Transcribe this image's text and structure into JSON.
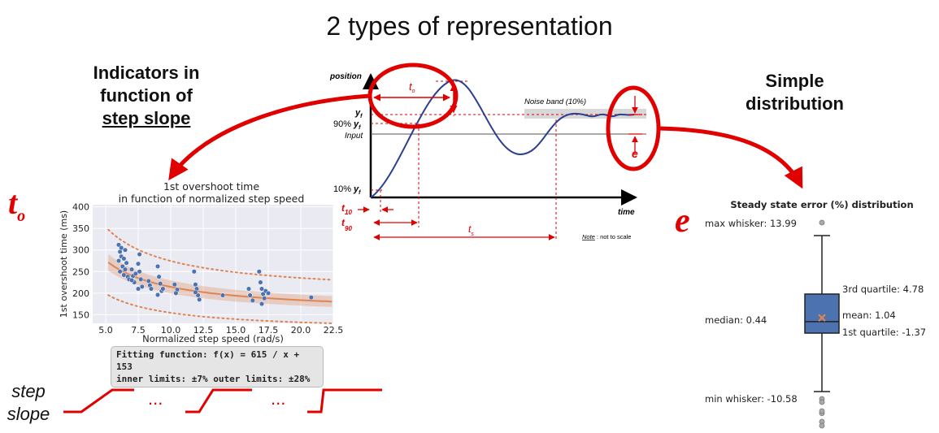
{
  "title": "2 types of representation",
  "left_heading": {
    "line1": "Indicators in",
    "line2": "function of",
    "line3": "step slope"
  },
  "right_heading": {
    "line1": "Simple",
    "line2": "distribution"
  },
  "to_symbol": {
    "main": "t",
    "sub": "o"
  },
  "e_symbol": "e",
  "step_label": {
    "line1": "step",
    "line2": "slope"
  },
  "ellipsis": "...",
  "colors": {
    "accent_red": "#e00000",
    "curve_blue": "#2a3f8f",
    "point_blue": "#4c72b0",
    "fit_orange": "#dd8452",
    "box_blue": "#4c72b0"
  },
  "response_diagram": {
    "position_label": "position",
    "time_label": "time",
    "yf_label": "y",
    "yf_sub": "f",
    "ninety_label": "90%",
    "ten_label": "10%",
    "input_label": "Input",
    "noise_band_label": "Noise band (10%)",
    "to_label": "t",
    "to_sub": "o",
    "t10_label": "t",
    "t10_sub": "10",
    "t90_label": "t",
    "t90_sub": "90",
    "ts_label": "t",
    "ts_sub": "s",
    "e_label": "e",
    "note_word": "Note",
    "note_rest": " : not to scale"
  },
  "chart_data": [
    {
      "type": "scatter",
      "title": "1st overshoot time",
      "subtitle": "in function of normalized step speed",
      "xlabel": "Normalized step speed (rad/s)",
      "ylabel": "1st overshoot time (ms)",
      "xlim": [
        4,
        22.5
      ],
      "ylim": [
        130,
        405
      ],
      "xticks": [
        "5.0",
        "7.5",
        "10.0",
        "12.5",
        "15.0",
        "17.5",
        "20.0",
        "22.5"
      ],
      "yticks": [
        "150",
        "200",
        "250",
        "300",
        "350",
        "400"
      ],
      "grid": true,
      "fit": {
        "a": 615,
        "b": 153,
        "inner_pct": 7,
        "outer_pct": 28
      },
      "annotation_line1": "Fitting function: f(x) = 615 / x  + 153",
      "annotation_line2": "inner limits: ±7%  outer limits: ±28%",
      "points": [
        [
          6.0,
          312
        ],
        [
          6.1,
          296
        ],
        [
          6.2,
          285
        ],
        [
          6.0,
          275
        ],
        [
          6.3,
          262
        ],
        [
          6.1,
          250
        ],
        [
          6.4,
          242
        ],
        [
          6.2,
          305
        ],
        [
          6.5,
          300
        ],
        [
          6.6,
          270
        ],
        [
          6.5,
          255
        ],
        [
          6.7,
          238
        ],
        [
          6.8,
          232
        ],
        [
          6.4,
          280
        ],
        [
          7.0,
          255
        ],
        [
          7.1,
          240
        ],
        [
          7.2,
          225
        ],
        [
          7.3,
          245
        ],
        [
          7.0,
          230
        ],
        [
          7.5,
          268
        ],
        [
          7.6,
          250
        ],
        [
          7.7,
          232
        ],
        [
          7.8,
          215
        ],
        [
          7.5,
          210
        ],
        [
          7.6,
          290
        ],
        [
          8.3,
          228
        ],
        [
          8.4,
          218
        ],
        [
          8.5,
          210
        ],
        [
          9.0,
          262
        ],
        [
          9.1,
          238
        ],
        [
          9.2,
          222
        ],
        [
          9.3,
          205
        ],
        [
          9.0,
          196
        ],
        [
          9.4,
          210
        ],
        [
          10.3,
          220
        ],
        [
          10.5,
          208
        ],
        [
          10.4,
          200
        ],
        [
          11.8,
          250
        ],
        [
          11.9,
          220
        ],
        [
          12.0,
          210
        ],
        [
          12.1,
          195
        ],
        [
          12.2,
          185
        ],
        [
          11.9,
          202
        ],
        [
          14.0,
          195
        ],
        [
          16.0,
          210
        ],
        [
          16.1,
          195
        ],
        [
          16.3,
          183
        ],
        [
          16.8,
          250
        ],
        [
          16.9,
          225
        ],
        [
          17.0,
          210
        ],
        [
          17.1,
          198
        ],
        [
          17.2,
          188
        ],
        [
          17.0,
          175
        ],
        [
          17.3,
          205
        ],
        [
          17.5,
          200
        ],
        [
          20.8,
          190
        ]
      ]
    },
    {
      "type": "box",
      "title": "Steady state error (%) distribution",
      "max_whisker_label": "max whisker: 13.99",
      "q3_label": "3rd quartile: 4.78",
      "median_label": "median: 0.44",
      "mean_label": "mean: 1.04",
      "q1_label": "1st quartile: -1.37",
      "min_whisker_label": "min whisker: -10.58",
      "max_whisker": 13.99,
      "q3": 4.78,
      "median": 0.44,
      "mean": 1.04,
      "q1": -1.37,
      "min_whisker": -10.58,
      "outliers": [
        18.5,
        -12.5,
        -13.2,
        -14.0,
        -15.5,
        -17.5,
        -18.5
      ]
    }
  ]
}
